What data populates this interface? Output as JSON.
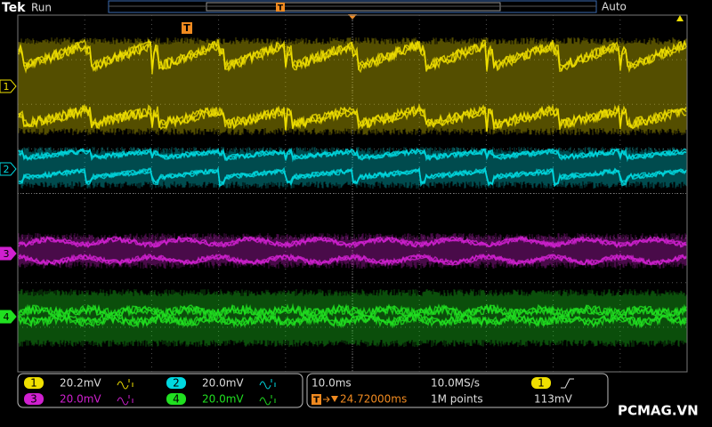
{
  "header": {
    "brand": "Tek",
    "status": "Run",
    "mode": "Auto",
    "trigger_marker": "T"
  },
  "channel_markers": [
    "1",
    "2",
    "3",
    "4"
  ],
  "readouts": {
    "channels": [
      {
        "label": "1",
        "scale": "20.2mV"
      },
      {
        "label": "2",
        "scale": "20.0mV"
      },
      {
        "label": "3",
        "scale": "20.0mV"
      },
      {
        "label": "4",
        "scale": "20.0mV"
      }
    ],
    "timebase": "10.0ms",
    "sample_rate": "10.0MS/s",
    "trigger_position": "24.72000ms",
    "record_length": "1M points",
    "trigger_source": "1",
    "trigger_level": "113mV"
  },
  "watermark": "PCMAG.VN"
}
